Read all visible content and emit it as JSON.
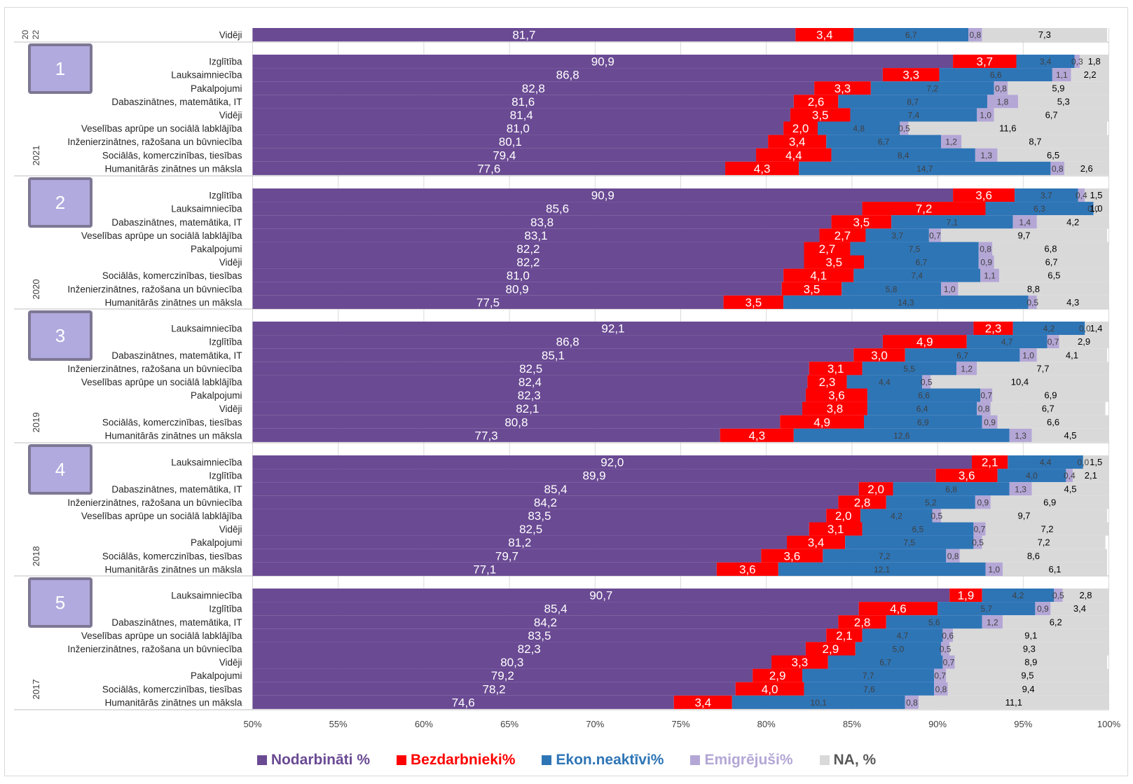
{
  "colors": {
    "employed": "#6a4a93",
    "unemployed": "#ff0000",
    "inactive": "#2e75b6",
    "emigrated": "#b4a7d6",
    "na": "#d9d9d9",
    "badge_fill": "#b1aade",
    "badge_border": "#7e7794"
  },
  "legend": [
    {
      "label": "Nodarbināti %",
      "color": "#6a4a93",
      "text_color": "#6a4a93"
    },
    {
      "label": "Bezdarbnieki%",
      "color": "#ff0000",
      "text_color": "#ff0000"
    },
    {
      "label": "Ekon.neaktīvi%",
      "color": "#2e75b6",
      "text_color": "#2e75b6"
    },
    {
      "label": "Emigrējuši%",
      "color": "#b4a7d6",
      "text_color": "#b4a7d6"
    },
    {
      "label": "NA,  %",
      "color": "#d9d9d9",
      "text_color": "#595959"
    }
  ],
  "chart_data": {
    "type": "bar",
    "orientation": "horizontal",
    "stacked": true,
    "xlim": [
      50,
      100
    ],
    "x_ticks": [
      "50%",
      "55%",
      "60%",
      "65%",
      "70%",
      "75%",
      "80%",
      "85%",
      "90%",
      "95%",
      "100%"
    ],
    "series_names": [
      "Nodarbināti %",
      "Bezdarbnieki%",
      "Ekon.neaktīvi%",
      "Emigrējuši%",
      "NA,  %"
    ],
    "groups": [
      {
        "year": "2022",
        "year_label_parts": [
          "20",
          "22"
        ],
        "badge": "",
        "rows": [
          {
            "label": "Vidēji",
            "values": [
              "81,7",
              "3,4",
              "6,7",
              "0,8",
              "7,3"
            ]
          }
        ]
      },
      {
        "year": "2021",
        "badge": "1",
        "rows": [
          {
            "label": "Izglītība",
            "values": [
              "90,9",
              "3,7",
              "3,4",
              "0,3",
              "1,8"
            ]
          },
          {
            "label": "Lauksaimniecība",
            "values": [
              "86,8",
              "3,3",
              "6,6",
              "1,1",
              "2,2"
            ]
          },
          {
            "label": "Pakalpojumi",
            "values": [
              "82,8",
              "3,3",
              "7,2",
              "0,8",
              "5,9"
            ]
          },
          {
            "label": "Dabaszinātnes, matemātika, IT",
            "values": [
              "81,6",
              "2,6",
              "8,7",
              "1,8",
              "5,3"
            ]
          },
          {
            "label": "Vidēji",
            "values": [
              "81,4",
              "3,5",
              "7,4",
              "1,0",
              "6,7"
            ]
          },
          {
            "label": "Veselības aprūpe un sociālā labklājība",
            "values": [
              "81,0",
              "2,0",
              "4,8",
              "0,5",
              "11,6"
            ]
          },
          {
            "label": "Inženierzinātnes, ražošana un būvniecība",
            "values": [
              "80,1",
              "3,4",
              "6,7",
              "1,2",
              "8,7"
            ]
          },
          {
            "label": "Sociālās, komerczinības, tiesības",
            "values": [
              "79,4",
              "4,4",
              "8,4",
              "1,3",
              "6,5"
            ]
          },
          {
            "label": "Humanitārās zinātnes un māksla",
            "values": [
              "77,6",
              "4,3",
              "14,7",
              "0,8",
              "2,6"
            ]
          }
        ]
      },
      {
        "year": "2020",
        "badge": "2",
        "rows": [
          {
            "label": "Izglītība",
            "values": [
              "90,9",
              "3,6",
              "3,7",
              "0,4",
              "1,5"
            ]
          },
          {
            "label": "Lauksaimniecība",
            "values": [
              "85,6",
              "7,2",
              "6,3",
              "0,0",
              "1,0"
            ]
          },
          {
            "label": "Dabaszinātnes, matemātika, IT",
            "values": [
              "83,8",
              "3,5",
              "7,1",
              "1,4",
              "4,2"
            ]
          },
          {
            "label": "Veselības aprūpe un sociālā labklājība",
            "values": [
              "83,1",
              "2,7",
              "3,7",
              "0,7",
              "9,7"
            ]
          },
          {
            "label": "Pakalpojumi",
            "values": [
              "82,2",
              "2,7",
              "7,5",
              "0,8",
              "6,8"
            ]
          },
          {
            "label": "Vidēji",
            "values": [
              "82,2",
              "3,5",
              "6,7",
              "0,9",
              "6,7"
            ]
          },
          {
            "label": "Sociālās, komerczinības, tiesības",
            "values": [
              "81,0",
              "4,1",
              "7,4",
              "1,1",
              "6,5"
            ]
          },
          {
            "label": "Inženierzinātnes, ražošana un būvniecība",
            "values": [
              "80,9",
              "3,5",
              "5,8",
              "1,0",
              "8,8"
            ]
          },
          {
            "label": "Humanitārās zinātnes un māksla",
            "values": [
              "77,5",
              "3,5",
              "14,3",
              "0,5",
              "4,3"
            ]
          }
        ]
      },
      {
        "year": "2019",
        "badge": "3",
        "rows": [
          {
            "label": "Lauksaimniecība",
            "values": [
              "92,1",
              "2,3",
              "4,2",
              "0,0",
              "1,4"
            ]
          },
          {
            "label": "Izglītība",
            "values": [
              "86,8",
              "4,9",
              "4,7",
              "0,7",
              "2,9"
            ]
          },
          {
            "label": "Dabaszinātnes, matemātika, IT",
            "values": [
              "85,1",
              "3,0",
              "6,7",
              "1,0",
              "4,1"
            ]
          },
          {
            "label": "Inženierzinātnes, ražošana un būvniecība",
            "values": [
              "82,5",
              "3,1",
              "5,5",
              "1,2",
              "7,7"
            ]
          },
          {
            "label": "Veselības aprūpe un sociālā labklājība",
            "values": [
              "82,4",
              "2,3",
              "4,4",
              "0,5",
              "10,4"
            ]
          },
          {
            "label": "Pakalpojumi",
            "values": [
              "82,3",
              "3,6",
              "6,6",
              "0,7",
              "6,9"
            ]
          },
          {
            "label": "Vidēji",
            "values": [
              "82,1",
              "3,8",
              "6,4",
              "0,8",
              "6,7"
            ]
          },
          {
            "label": "Sociālās, komerczinības, tiesības",
            "values": [
              "80,8",
              "4,9",
              "6,9",
              "0,9",
              "6,6"
            ]
          },
          {
            "label": "Humanitārās zinātnes un māksla",
            "values": [
              "77,3",
              "4,3",
              "12,6",
              "1,3",
              "4,5"
            ]
          }
        ]
      },
      {
        "year": "2018",
        "badge": "4",
        "rows": [
          {
            "label": "Lauksaimniecība",
            "values": [
              "92,0",
              "2,1",
              "4,4",
              "0,0",
              "1,5"
            ]
          },
          {
            "label": "Izglītība",
            "values": [
              "89,9",
              "3,6",
              "4,0",
              "0,4",
              "2,1"
            ]
          },
          {
            "label": "Dabaszinātnes, matemātika, IT",
            "values": [
              "85,4",
              "2,0",
              "6,8",
              "1,3",
              "4,5"
            ]
          },
          {
            "label": "Inženierzinātnes, ražošana un būvniecība",
            "values": [
              "84,2",
              "2,8",
              "5,2",
              "0,9",
              "6,9"
            ]
          },
          {
            "label": "Veselības aprūpe un sociālā labklājība",
            "values": [
              "83,5",
              "2,0",
              "4,2",
              "0,5",
              "9,7"
            ]
          },
          {
            "label": "Vidēji",
            "values": [
              "82,5",
              "3,1",
              "6,5",
              "0,7",
              "7,2"
            ]
          },
          {
            "label": "Pakalpojumi",
            "values": [
              "81,2",
              "3,4",
              "7,5",
              "0,5",
              "7,2"
            ]
          },
          {
            "label": "Sociālās, komerczinības, tiesības",
            "values": [
              "79,7",
              "3,6",
              "7,2",
              "0,8",
              "8,6"
            ]
          },
          {
            "label": "Humanitārās zinātnes un māksla",
            "values": [
              "77,1",
              "3,6",
              "12,1",
              "1,0",
              "6,1"
            ]
          }
        ]
      },
      {
        "year": "2017",
        "badge": "5",
        "rows": [
          {
            "label": "Lauksaimniecība",
            "values": [
              "90,7",
              "1,9",
              "4,2",
              "0,5",
              "2,8"
            ]
          },
          {
            "label": "Izglītība",
            "values": [
              "85,4",
              "4,6",
              "5,7",
              "0,9",
              "3,4"
            ]
          },
          {
            "label": "Dabaszinātnes, matemātika, IT",
            "values": [
              "84,2",
              "2,8",
              "5,6",
              "1,2",
              "6,2"
            ]
          },
          {
            "label": "Veselības aprūpe un sociālā labklājība",
            "values": [
              "83,5",
              "2,1",
              "4,7",
              "0,6",
              "9,1"
            ]
          },
          {
            "label": "Inženierzinātnes, ražošana un būvniecība",
            "values": [
              "82,3",
              "2,9",
              "5,0",
              "0,5",
              "9,3"
            ]
          },
          {
            "label": "Vidēji",
            "values": [
              "80,3",
              "3,3",
              "6,7",
              "0,7",
              "8,9"
            ]
          },
          {
            "label": "Pakalpojumi",
            "values": [
              "79,2",
              "2,9",
              "7,7",
              "0,7",
              "9,5"
            ]
          },
          {
            "label": "Sociālās, komerczinības, tiesības",
            "values": [
              "78,2",
              "4,0",
              "7,6",
              "0,8",
              "9,4"
            ]
          },
          {
            "label": "Humanitārās zinātnes un māksla",
            "values": [
              "74,6",
              "3,4",
              "10,1",
              "0,8",
              "11,1"
            ]
          }
        ]
      }
    ]
  }
}
